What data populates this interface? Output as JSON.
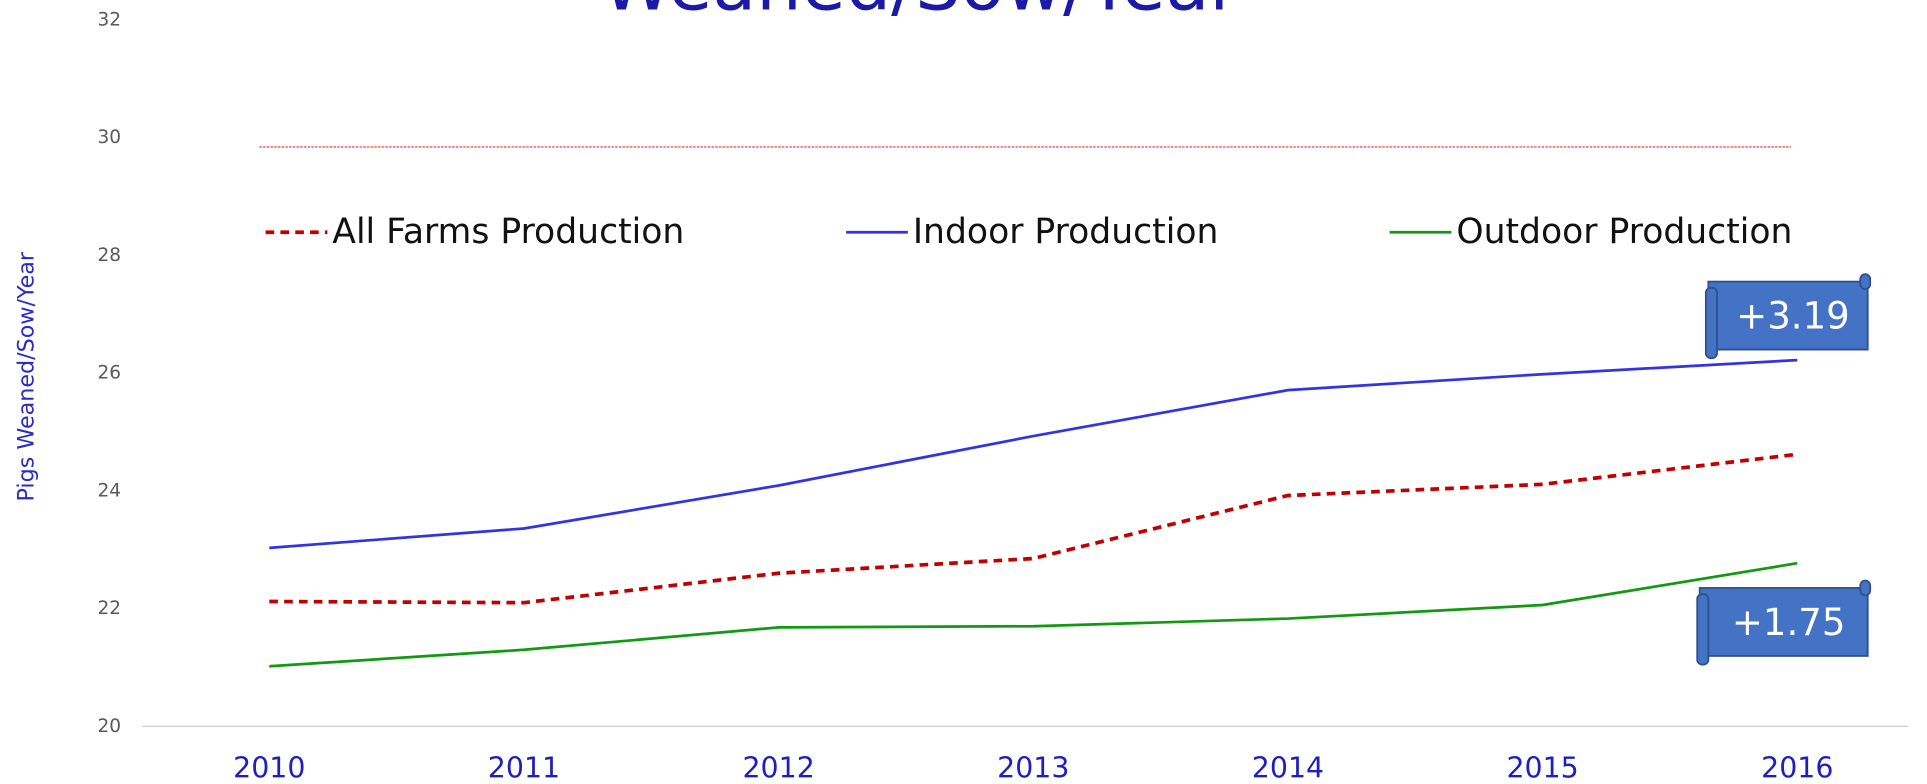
{
  "chart_data": {
    "type": "line",
    "title": "Weaned/Sow/Year",
    "y_label": "Pigs Weaned/Sow/Year",
    "categories": [
      "2010",
      "2011",
      "2012",
      "2013",
      "2014",
      "2015",
      "2016"
    ],
    "series": [
      {
        "name": "All Farms Production",
        "color": "#c00000",
        "line_style": "dashed",
        "values": [
          22.12,
          22.1,
          22.6,
          22.85,
          23.92,
          24.11,
          24.62
        ]
      },
      {
        "name": "Indoor Production",
        "color": "#3333e6",
        "line_style": "solid",
        "values": [
          23.03,
          23.36,
          24.09,
          24.93,
          25.71,
          25.98,
          26.22
        ]
      },
      {
        "name": "Outdoor Production",
        "color": "#129912",
        "line_style": "solid",
        "values": [
          21.02,
          21.3,
          21.68,
          21.7,
          21.83,
          22.06,
          22.77
        ]
      }
    ],
    "reference_line": {
      "value": 29.84,
      "color": "#e03030"
    },
    "annotations": [
      "+3.19",
      "+1.75"
    ],
    "ylim": [
      20,
      32
    ],
    "yticks": [
      20,
      22,
      24,
      26,
      28,
      30,
      32
    ]
  }
}
